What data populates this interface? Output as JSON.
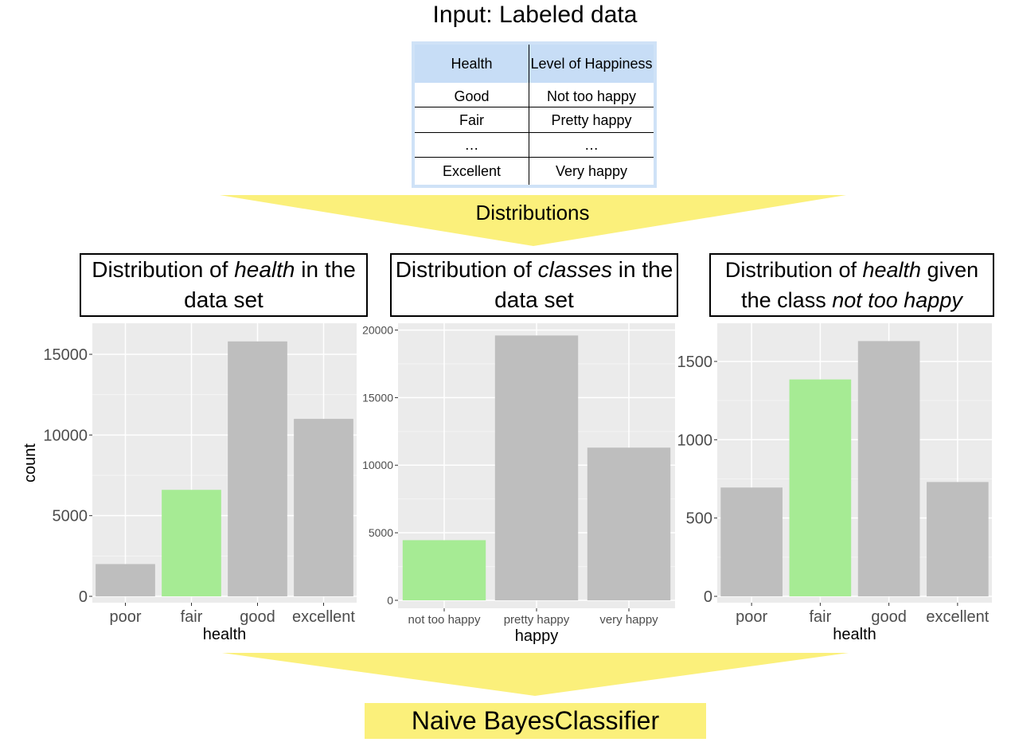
{
  "title": "Input: Labeled data",
  "table": {
    "headers": [
      "Health",
      "Level of Happiness"
    ],
    "rows": [
      [
        "Good",
        "Not too happy"
      ],
      [
        "Fair",
        "Pretty happy"
      ],
      [
        "…",
        "…"
      ],
      [
        "Excellent",
        "Very happy"
      ]
    ]
  },
  "arrow_label": "Distributions",
  "panels": [
    {
      "title_pre": "Distribution of ",
      "title_em": "health",
      "title_post": " in the data set"
    },
    {
      "title_pre": "Distribution of ",
      "title_em": "classes",
      "title_post": " in the data set"
    },
    {
      "title_pre": "Distribution of ",
      "title_em": "health",
      "title_post": " given the class ",
      "title_em2": "not too happy"
    }
  ],
  "output_label": "Naive BayesClassifier",
  "colors": {
    "bar": "#bebebe",
    "highlight": "#a6eb94",
    "panel_bg": "#ebebeb",
    "arrow": "#fbf07b",
    "table_header": "#c7ddf6"
  },
  "chart_data": [
    {
      "type": "bar",
      "categories": [
        "poor",
        "fair",
        "good",
        "excellent"
      ],
      "values": [
        2000,
        6600,
        15800,
        11000
      ],
      "highlight": "fair",
      "xlabel": "health",
      "ylabel": "count",
      "ylim": [
        0,
        16500
      ],
      "yticks": [
        0,
        5000,
        10000,
        15000
      ],
      "grid": true
    },
    {
      "type": "bar",
      "categories": [
        "not too happy",
        "pretty happy",
        "very happy"
      ],
      "values": [
        4450,
        19600,
        11300
      ],
      "highlight": "not too happy",
      "xlabel": "happy",
      "ylabel": "",
      "ylim": [
        0,
        20500
      ],
      "yticks": [
        0,
        5000,
        10000,
        15000,
        20000
      ],
      "grid": true
    },
    {
      "type": "bar",
      "categories": [
        "poor",
        "fair",
        "good",
        "excellent"
      ],
      "values": [
        695,
        1385,
        1630,
        730
      ],
      "highlight": "fair",
      "xlabel": "health",
      "ylabel": "",
      "ylim": [
        0,
        1700
      ],
      "yticks": [
        0,
        500,
        1000,
        1500
      ],
      "grid": true
    }
  ]
}
